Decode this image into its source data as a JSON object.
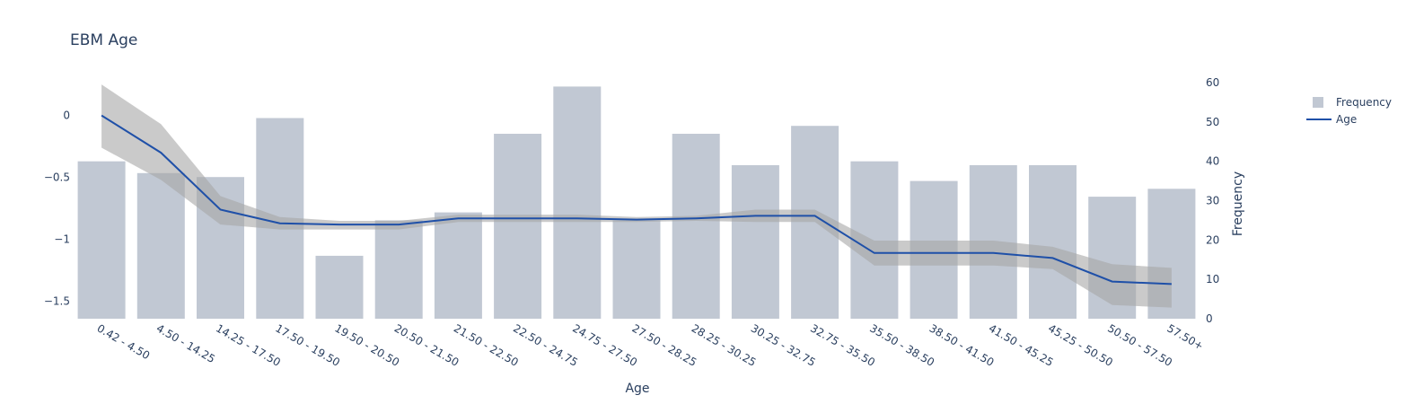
{
  "chart_data": {
    "type": "bar",
    "title": "EBM Age",
    "xlabel": "Age",
    "y2label": "Frequency",
    "categories": [
      "0.42 - 4.50",
      "4.50 - 14.25",
      "14.25 - 17.50",
      "17.50 - 19.50",
      "19.50 - 20.50",
      "20.50 - 21.50",
      "21.50 - 22.50",
      "22.50 - 24.75",
      "24.75 - 27.50",
      "27.50 - 28.25",
      "28.25 - 30.25",
      "30.25 - 32.75",
      "32.75 - 35.50",
      "35.50 - 38.50",
      "38.50 - 41.50",
      "41.50 - 45.25",
      "45.25 - 50.50",
      "50.50 - 57.50",
      "57.50+"
    ],
    "y_axis": {
      "range": [
        -1.64,
        0.28
      ],
      "ticks": [
        0,
        -0.5,
        -1,
        -1.5
      ],
      "tick_labels": [
        "0",
        "−0.5",
        "−1",
        "−1.5"
      ]
    },
    "y2_axis": {
      "range": [
        0,
        60
      ],
      "ticks": [
        0,
        10,
        20,
        30,
        40,
        50,
        60
      ]
    },
    "legend": {
      "position": "top-right",
      "entries": [
        "Frequency",
        "Age"
      ]
    },
    "series": [
      {
        "name": "Frequency",
        "kind": "bar",
        "axis": "y2",
        "color": "#c1c8d3",
        "values": [
          40,
          37,
          36,
          51,
          16,
          25,
          27,
          47,
          59,
          25,
          47,
          39,
          49,
          40,
          35,
          39,
          39,
          31,
          33
        ]
      },
      {
        "name": "Age",
        "kind": "line",
        "axis": "y",
        "color": "#1f50a8",
        "values": [
          0.0,
          -0.3,
          -0.76,
          -0.87,
          -0.88,
          -0.88,
          -0.83,
          -0.83,
          -0.83,
          -0.84,
          -0.83,
          -0.81,
          -0.81,
          -1.11,
          -1.11,
          -1.11,
          -1.15,
          -1.34,
          -1.36
        ],
        "band_upper": [
          0.25,
          -0.07,
          -0.65,
          -0.82,
          -0.85,
          -0.85,
          -0.8,
          -0.8,
          -0.8,
          -0.82,
          -0.81,
          -0.76,
          -0.76,
          -1.01,
          -1.01,
          -1.01,
          -1.06,
          -1.2,
          -1.23
        ],
        "band_lower": [
          -0.26,
          -0.52,
          -0.88,
          -0.92,
          -0.92,
          -0.92,
          -0.86,
          -0.86,
          -0.86,
          -0.86,
          -0.85,
          -0.86,
          -0.86,
          -1.21,
          -1.21,
          -1.21,
          -1.24,
          -1.53,
          -1.55
        ],
        "band_color": "#a6a6a6"
      }
    ]
  }
}
